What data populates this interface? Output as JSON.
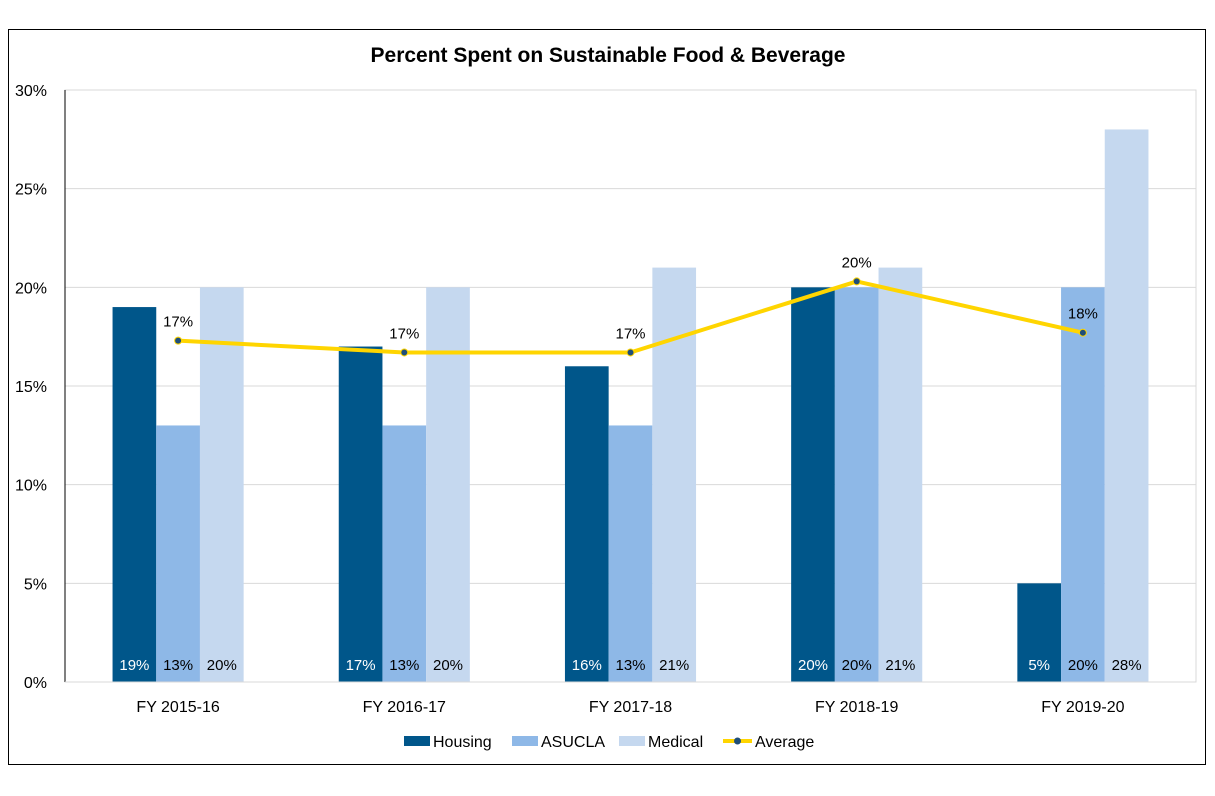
{
  "chart_data": {
    "type": "bar",
    "title": "Percent Spent on Sustainable Food & Beverage",
    "categories": [
      "FY 2015-16",
      "FY 2016-17",
      "FY 2017-18",
      "FY 2018-19",
      "FY 2019-20"
    ],
    "series": [
      {
        "name": "Housing",
        "type": "bar",
        "color": "#00568a",
        "label_color": "#ffffff",
        "values": [
          19,
          17,
          16,
          20,
          5
        ],
        "labels": [
          "19%",
          "17%",
          "16%",
          "20%",
          "5%"
        ]
      },
      {
        "name": "ASUCLA",
        "type": "bar",
        "color": "#8eb8e7",
        "label_color": "#000000",
        "values": [
          13,
          13,
          13,
          20,
          20
        ],
        "labels": [
          "13%",
          "13%",
          "13%",
          "20%",
          "20%"
        ]
      },
      {
        "name": "Medical",
        "type": "bar",
        "color": "#c5d8ef",
        "label_color": "#000000",
        "values": [
          20,
          20,
          21,
          21,
          28
        ],
        "labels": [
          "20%",
          "20%",
          "21%",
          "21%",
          "28%"
        ]
      },
      {
        "name": "Average",
        "type": "line",
        "color": "#ffd500",
        "marker_color": "#1f4e79",
        "values": [
          17.3,
          16.7,
          16.7,
          20.3,
          17.7
        ],
        "labels": [
          "17%",
          "17%",
          "17%",
          "20%",
          "18%"
        ]
      }
    ],
    "yticks": [
      "0%",
      "5%",
      "10%",
      "15%",
      "20%",
      "25%",
      "30%"
    ],
    "ylim": [
      0,
      30
    ],
    "grid": true,
    "legend": "bottom"
  }
}
